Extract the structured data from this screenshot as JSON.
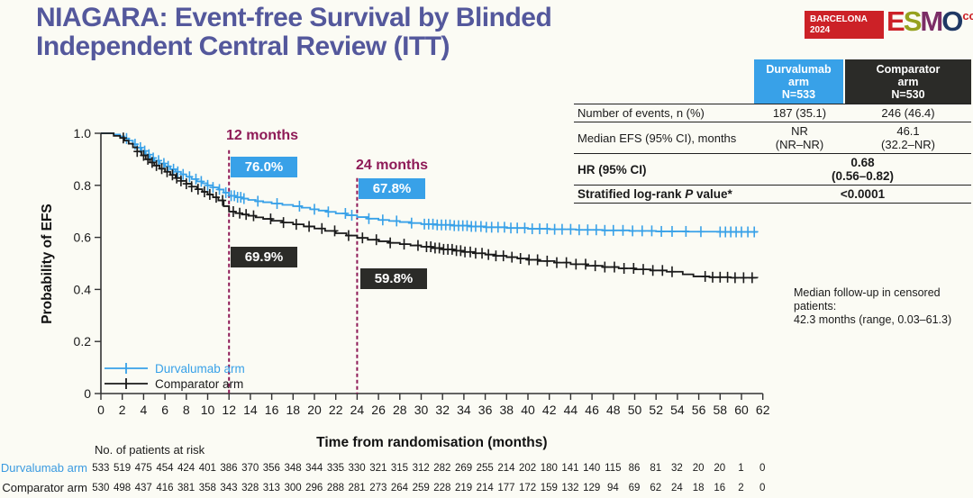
{
  "title": {
    "text": "NIAGARA: Event-free Survival by Blinded Independent Central Review (ITT)"
  },
  "colors": {
    "title_purple": "#54589c",
    "accent_blue": "#38a1e8",
    "dark_box": "#2b2b28",
    "magenta": "#8e1a57",
    "logo_red": "#cc2127",
    "risk_blue": "#3a9ae0",
    "axis": "#333333"
  },
  "logo": {
    "venue_line1": "BARCELONA",
    "venue_line2": "2024",
    "letters": [
      {
        "ch": "E",
        "color": "#cc2127"
      },
      {
        "ch": "S",
        "color": "#96a11f"
      },
      {
        "ch": "M",
        "color": "#7b2d66"
      },
      {
        "ch": "O",
        "color": "#1f3864"
      }
    ],
    "congress": "congress"
  },
  "results_table": {
    "header": {
      "col1_lines": [
        "Durvalumab",
        "arm",
        "N=533"
      ],
      "col2_lines": [
        "Comparator",
        "arm",
        "N=530"
      ]
    },
    "row_events": {
      "label": "Number of events, n (%)",
      "v1": "187 (35.1)",
      "v2": "246 (46.4)"
    },
    "row_median": {
      "label": "Median EFS (95% CI), months",
      "v1_lines": [
        "NR",
        "(NR–NR)"
      ],
      "v2_lines": [
        "46.1",
        "(32.2–NR)"
      ]
    },
    "row_hr": {
      "label": "HR (95% CI)",
      "value_lines": [
        "0.68",
        "(0.56–0.82)"
      ]
    },
    "row_p": {
      "label_pre": "Stratified log-rank ",
      "label_italic": "P",
      "label_post": " value*",
      "value": "<0.0001"
    }
  },
  "annotations": {
    "t12": {
      "label": "12 months",
      "durva": "76.0%",
      "comp": "69.9%"
    },
    "t24": {
      "label": "24 months",
      "durva": "67.8%",
      "comp": "59.8%"
    }
  },
  "followup_note": {
    "line1": "Median follow-up in censored patients:",
    "line2": "42.3 months (range, 0.03–61.3)"
  },
  "risk_table": {
    "header": "No. of patients at risk",
    "rows": [
      {
        "label": "Durvalumab arm",
        "label_color": "#3a9ae0",
        "values": [
          533,
          519,
          475,
          454,
          424,
          401,
          386,
          370,
          356,
          348,
          344,
          335,
          330,
          321,
          315,
          312,
          282,
          269,
          255,
          214,
          202,
          180,
          141,
          140,
          115,
          86,
          81,
          32,
          20,
          20,
          1,
          0
        ]
      },
      {
        "label": "Comparator arm",
        "label_color": "#1a1a1a",
        "values": [
          530,
          498,
          437,
          416,
          381,
          358,
          343,
          328,
          313,
          300,
          296,
          288,
          281,
          273,
          264,
          259,
          228,
          219,
          214,
          177,
          172,
          159,
          132,
          129,
          94,
          69,
          62,
          24,
          18,
          16,
          2,
          0
        ]
      }
    ]
  },
  "chart_data": {
    "type": "line",
    "subtype": "kaplan-meier-step",
    "title": "Event-free survival by BICR (ITT)",
    "xlabel": "Time from randomisation (months)",
    "ylabel": "Probability of EFS",
    "xlim": [
      0,
      62
    ],
    "ylim": [
      0,
      1.0
    ],
    "xticks": [
      0,
      2,
      4,
      6,
      8,
      10,
      12,
      14,
      16,
      18,
      20,
      22,
      24,
      26,
      28,
      30,
      32,
      34,
      36,
      38,
      40,
      42,
      44,
      46,
      48,
      50,
      52,
      54,
      56,
      58,
      60,
      62
    ],
    "yticks": [
      0,
      0.2,
      0.4,
      0.6,
      0.8,
      1.0
    ],
    "grid": false,
    "legend_position": "bottom-left-inside",
    "reference_lines": [
      {
        "x": 12,
        "y_top": 0.935
      },
      {
        "x": 24,
        "y_top": 0.828
      }
    ],
    "series": [
      {
        "name": "Durvalumab arm",
        "color": "#38a1e8",
        "value_at_12m": 0.76,
        "value_at_24m": 0.678,
        "km_steps": [
          [
            0,
            1.0
          ],
          [
            1.2,
            0.995
          ],
          [
            1.8,
            0.988
          ],
          [
            2.2,
            0.98
          ],
          [
            2.6,
            0.972
          ],
          [
            3.0,
            0.958
          ],
          [
            3.4,
            0.945
          ],
          [
            3.8,
            0.932
          ],
          [
            4.2,
            0.918
          ],
          [
            4.6,
            0.905
          ],
          [
            5.0,
            0.895
          ],
          [
            5.5,
            0.884
          ],
          [
            6.0,
            0.873
          ],
          [
            6.5,
            0.862
          ],
          [
            7.0,
            0.852
          ],
          [
            7.5,
            0.842
          ],
          [
            8.0,
            0.833
          ],
          [
            8.5,
            0.824
          ],
          [
            9.0,
            0.815
          ],
          [
            9.5,
            0.808
          ],
          [
            10.0,
            0.8
          ],
          [
            10.5,
            0.792
          ],
          [
            11.0,
            0.784
          ],
          [
            11.5,
            0.772
          ],
          [
            12.0,
            0.76
          ],
          [
            12.6,
            0.754
          ],
          [
            13.2,
            0.749
          ],
          [
            13.8,
            0.744
          ],
          [
            14.5,
            0.739
          ],
          [
            15.2,
            0.735
          ],
          [
            16.0,
            0.73
          ],
          [
            17.0,
            0.725
          ],
          [
            18.0,
            0.72
          ],
          [
            18.8,
            0.714
          ],
          [
            19.6,
            0.708
          ],
          [
            20.4,
            0.703
          ],
          [
            21.2,
            0.698
          ],
          [
            22.0,
            0.692
          ],
          [
            23.0,
            0.685
          ],
          [
            24.0,
            0.678
          ],
          [
            25.0,
            0.672
          ],
          [
            26.0,
            0.667
          ],
          [
            27.0,
            0.663
          ],
          [
            28.0,
            0.659
          ],
          [
            29.0,
            0.655
          ],
          [
            30.0,
            0.651
          ],
          [
            31.5,
            0.648
          ],
          [
            33.0,
            0.645
          ],
          [
            34.5,
            0.642
          ],
          [
            36.0,
            0.639
          ],
          [
            38.0,
            0.636
          ],
          [
            40.0,
            0.633
          ],
          [
            42.0,
            0.631
          ],
          [
            44.5,
            0.629
          ],
          [
            47.0,
            0.627
          ],
          [
            49.5,
            0.625
          ],
          [
            52.0,
            0.623
          ],
          [
            55.0,
            0.622
          ],
          [
            58.0,
            0.621
          ],
          [
            61.5,
            0.62
          ]
        ],
        "censor_months": [
          2.4,
          3.2,
          3.7,
          4.1,
          4.5,
          4.9,
          5.4,
          5.9,
          6.3,
          6.8,
          7.2,
          7.7,
          8.3,
          8.9,
          9.4,
          10.0,
          10.5,
          11.1,
          11.7,
          12.2,
          12.5,
          12.8,
          13.1,
          13.4,
          14.7,
          16.5,
          18.6,
          20.0,
          21.3,
          22.9,
          23.5,
          25.1,
          26.4,
          27.7,
          29.1,
          30.3,
          30.7,
          31.1,
          31.5,
          31.9,
          32.3,
          32.7,
          33.1,
          33.5,
          33.9,
          34.3,
          34.7,
          35.1,
          35.6,
          36.1,
          36.6,
          37.2,
          37.8,
          38.4,
          39.0,
          39.7,
          40.4,
          41.1,
          41.8,
          42.5,
          43.2,
          44.0,
          44.8,
          45.6,
          46.4,
          47.2,
          48.0,
          48.9,
          49.8,
          50.7,
          51.6,
          52.5,
          53.5,
          54.8,
          56.2,
          58.0,
          58.5,
          59.0,
          59.5,
          60.0,
          60.6,
          61.2
        ]
      },
      {
        "name": "Comparator arm",
        "color": "#1a1a1a",
        "value_at_12m": 0.699,
        "value_at_24m": 0.598,
        "km_steps": [
          [
            0,
            1.0
          ],
          [
            1.2,
            0.99
          ],
          [
            1.8,
            0.982
          ],
          [
            2.2,
            0.972
          ],
          [
            2.6,
            0.96
          ],
          [
            3.0,
            0.946
          ],
          [
            3.4,
            0.93
          ],
          [
            3.8,
            0.915
          ],
          [
            4.2,
            0.9
          ],
          [
            4.6,
            0.888
          ],
          [
            5.0,
            0.876
          ],
          [
            5.5,
            0.864
          ],
          [
            6.0,
            0.852
          ],
          [
            6.5,
            0.84
          ],
          [
            7.0,
            0.828
          ],
          [
            7.5,
            0.817
          ],
          [
            8.0,
            0.806
          ],
          [
            8.5,
            0.795
          ],
          [
            9.0,
            0.785
          ],
          [
            9.5,
            0.775
          ],
          [
            10.0,
            0.765
          ],
          [
            10.5,
            0.754
          ],
          [
            11.0,
            0.742
          ],
          [
            11.5,
            0.72
          ],
          [
            12.0,
            0.699
          ],
          [
            12.6,
            0.693
          ],
          [
            13.2,
            0.688
          ],
          [
            13.8,
            0.683
          ],
          [
            14.5,
            0.677
          ],
          [
            15.2,
            0.671
          ],
          [
            16.0,
            0.664
          ],
          [
            17.0,
            0.657
          ],
          [
            18.0,
            0.65
          ],
          [
            19.0,
            0.642
          ],
          [
            20.0,
            0.634
          ],
          [
            21.0,
            0.625
          ],
          [
            22.0,
            0.616
          ],
          [
            23.0,
            0.607
          ],
          [
            24.0,
            0.598
          ],
          [
            25.0,
            0.591
          ],
          [
            26.0,
            0.585
          ],
          [
            27.0,
            0.579
          ],
          [
            28.0,
            0.574
          ],
          [
            29.0,
            0.569
          ],
          [
            30.0,
            0.564
          ],
          [
            31.0,
            0.559
          ],
          [
            32.0,
            0.554
          ],
          [
            33.0,
            0.549
          ],
          [
            34.0,
            0.544
          ],
          [
            35.0,
            0.539
          ],
          [
            36.0,
            0.534
          ],
          [
            37.0,
            0.529
          ],
          [
            38.0,
            0.524
          ],
          [
            39.0,
            0.519
          ],
          [
            40.0,
            0.514
          ],
          [
            41.0,
            0.509
          ],
          [
            42.5,
            0.503
          ],
          [
            44.0,
            0.497
          ],
          [
            45.5,
            0.491
          ],
          [
            47.0,
            0.486
          ],
          [
            48.5,
            0.481
          ],
          [
            50.0,
            0.477
          ],
          [
            51.5,
            0.473
          ],
          [
            53.0,
            0.468
          ],
          [
            54.5,
            0.458
          ],
          [
            55.5,
            0.45
          ],
          [
            57.0,
            0.447
          ],
          [
            59.0,
            0.445
          ],
          [
            61.5,
            0.444
          ]
        ],
        "censor_months": [
          2.1,
          3.4,
          4.0,
          4.4,
          4.8,
          5.2,
          5.7,
          6.2,
          6.7,
          7.1,
          7.5,
          8.0,
          8.5,
          9.1,
          9.7,
          10.2,
          10.8,
          11.4,
          12.4,
          13.0,
          13.6,
          14.3,
          15.9,
          17.1,
          18.3,
          19.5,
          20.7,
          21.9,
          23.2,
          24.5,
          25.8,
          27.1,
          28.4,
          29.7,
          30.5,
          30.9,
          31.3,
          31.7,
          32.1,
          32.5,
          32.9,
          33.3,
          33.7,
          34.1,
          34.6,
          35.1,
          35.7,
          36.3,
          37.0,
          37.7,
          38.5,
          39.3,
          40.1,
          40.9,
          41.8,
          42.7,
          43.6,
          44.5,
          45.4,
          46.3,
          47.2,
          48.1,
          49.0,
          49.9,
          50.8,
          51.7,
          52.6,
          53.5,
          56.6,
          57.3,
          58.0,
          58.7,
          59.4,
          60.2,
          61.0
        ]
      }
    ]
  }
}
